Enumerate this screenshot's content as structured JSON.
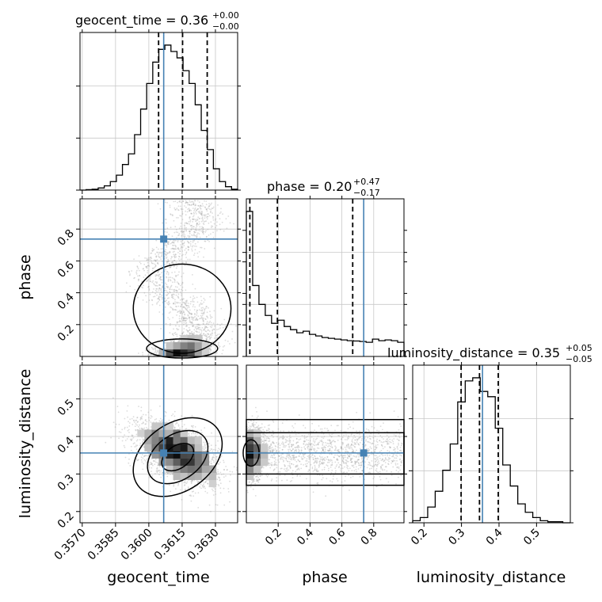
{
  "chart_data": {
    "type": "corner",
    "parameters": [
      "geocent_time",
      "phase",
      "luminosity_distance"
    ],
    "truths": {
      "geocent_time": 0.36067,
      "phase": 0.737,
      "luminosity_distance": 0.356
    },
    "colors": {
      "truth": "#4682b4",
      "hist": "#000000",
      "grid": "#c8c8c8",
      "samples": "#9a9a9a"
    },
    "diagonal": [
      {
        "param": "geocent_time",
        "title_main": "geocent_time = 0.36",
        "title_plus": "+0.00",
        "title_minus": "−0.00",
        "range": [
          0.3569,
          0.364
        ],
        "quantiles": [
          0.36044,
          0.36152,
          0.36263
        ],
        "ticks": [
          0.357,
          0.3585,
          0.36,
          0.3615,
          0.363
        ],
        "tick_labels": [
          "0.3570",
          "0.3585",
          "0.3600",
          "0.3615",
          "0.3630"
        ],
        "xlabel": "geocent_time",
        "counts": [
          0,
          1,
          2,
          5,
          10,
          20,
          35,
          60,
          85,
          130,
          190,
          250,
          300,
          330,
          340,
          325,
          310,
          280,
          250,
          200,
          140,
          95,
          50,
          20,
          8,
          2
        ]
      },
      {
        "param": "phase",
        "title_main": "phase = 0.20",
        "title_plus": "+0.47",
        "title_minus": "−0.17",
        "range": [
          0.0,
          0.99
        ],
        "quantiles": [
          0.022,
          0.195,
          0.668
        ],
        "ticks": [
          0.2,
          0.4,
          0.6,
          0.8
        ],
        "tick_labels": [
          "0.2",
          "0.4",
          "0.6",
          "0.8"
        ],
        "xlabel": "phase",
        "counts": [
          0.92,
          0.45,
          0.33,
          0.26,
          0.21,
          0.23,
          0.19,
          0.17,
          0.15,
          0.16,
          0.14,
          0.13,
          0.12,
          0.115,
          0.11,
          0.105,
          0.1,
          0.098,
          0.095,
          0.09,
          0.11,
          0.1,
          0.105,
          0.1,
          0.09
        ]
      },
      {
        "param": "luminosity_distance",
        "title_main": "luminosity_distance = 0.35",
        "title_plus": "+0.05",
        "title_minus": "−0.05",
        "range": [
          0.17,
          0.59
        ],
        "quantiles": [
          0.299,
          0.348,
          0.398
        ],
        "ticks": [
          0.2,
          0.3,
          0.4,
          0.5
        ],
        "tick_labels": [
          "0.2",
          "0.3",
          "0.4",
          "0.5"
        ],
        "xlabel": "luminosity_distance",
        "counts": [
          2,
          5,
          15,
          30,
          50,
          75,
          115,
          135,
          138,
          125,
          120,
          90,
          55,
          35,
          18,
          10,
          5,
          2,
          1,
          1,
          0
        ]
      }
    ],
    "off_diagonal": [
      {
        "x": "geocent_time",
        "y": "phase",
        "ylabel": "phase",
        "yticks": [
          0.2,
          0.4,
          0.6,
          0.8
        ],
        "ytick_labels": [
          "0.2",
          "0.4",
          "0.6",
          "0.8"
        ],
        "yrange": [
          0.0,
          0.99
        ]
      },
      {
        "x": "geocent_time",
        "y": "luminosity_distance",
        "ylabel": "luminosity_distance",
        "yticks": [
          0.2,
          0.3,
          0.4,
          0.5
        ],
        "ytick_labels": [
          "0.2",
          "0.3",
          "0.4",
          "0.5"
        ],
        "yrange": [
          0.17,
          0.59
        ]
      },
      {
        "x": "phase",
        "y": "luminosity_distance"
      }
    ]
  }
}
